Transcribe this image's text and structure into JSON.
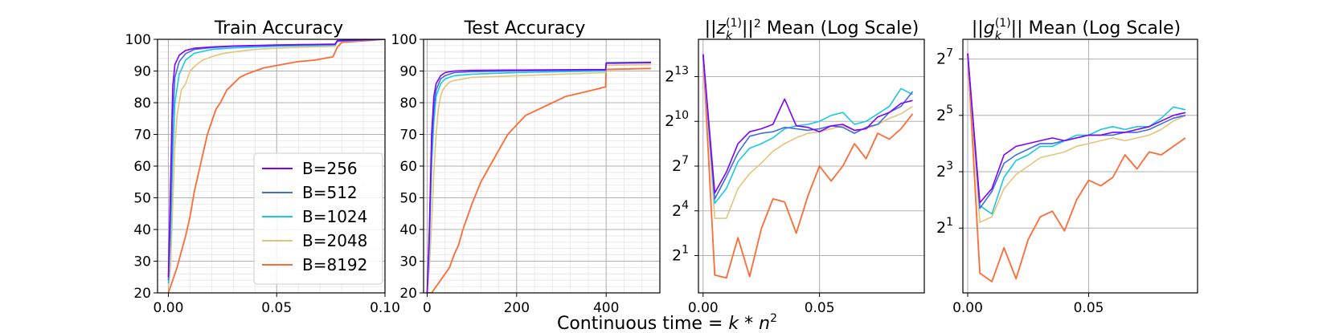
{
  "xlabel_parts": {
    "main": "Continuous time ",
    "eq": "= ",
    "k": "k",
    "star": " * ",
    "n": "n",
    "exp": "2"
  },
  "legend": {
    "entries": [
      "B=256",
      "B=512",
      "B=1024",
      "B=2048",
      "B=8192"
    ],
    "placement": "lower-right"
  },
  "colors": {
    "B=256": "#7f00ff",
    "B=512": "#3b6fe0",
    "B=1024": "#19c8e3",
    "B=2048": "#e5c37a",
    "B=8192": "#ff6a35"
  },
  "chart_data": [
    {
      "type": "line",
      "title": "Train Accuracy",
      "xlim": [
        -0.005,
        0.1
      ],
      "ylim": [
        20,
        100
      ],
      "xticks": [
        0.0,
        0.05,
        0.1
      ],
      "xtick_labels": [
        "0.00",
        "0.05",
        "0.10"
      ],
      "yticks": [
        20,
        30,
        40,
        50,
        60,
        70,
        80,
        90,
        100
      ],
      "ytick_labels": [
        "20",
        "30",
        "40",
        "50",
        "60",
        "70",
        "80",
        "90",
        "100"
      ],
      "grid": true,
      "minor_grid": true,
      "series": [
        {
          "name": "B=256",
          "x": [
            0,
            0.001,
            0.002,
            0.003,
            0.005,
            0.008,
            0.012,
            0.02,
            0.03,
            0.05,
            0.077,
            0.078,
            0.1
          ],
          "y": [
            25,
            55,
            85,
            92,
            95,
            96.5,
            97.2,
            97.6,
            97.9,
            98.2,
            98.5,
            99.6,
            100
          ]
        },
        {
          "name": "B=512",
          "x": [
            0,
            0.001,
            0.002,
            0.003,
            0.005,
            0.008,
            0.012,
            0.02,
            0.03,
            0.05,
            0.077,
            0.078,
            0.1
          ],
          "y": [
            24,
            45,
            75,
            88,
            93,
            95.5,
            96.8,
            97.4,
            97.8,
            98.1,
            98.4,
            99.5,
            100
          ]
        },
        {
          "name": "B=1024",
          "x": [
            0,
            0.001,
            0.002,
            0.003,
            0.005,
            0.008,
            0.012,
            0.02,
            0.03,
            0.05,
            0.077,
            0.078,
            0.1
          ],
          "y": [
            23,
            38,
            62,
            80,
            89,
            93.5,
            95.6,
            96.8,
            97.3,
            97.8,
            98.2,
            99.4,
            100
          ]
        },
        {
          "name": "B=2048",
          "x": [
            0,
            0.001,
            0.002,
            0.003,
            0.004,
            0.006,
            0.008,
            0.01,
            0.013,
            0.016,
            0.02,
            0.025,
            0.03,
            0.04,
            0.05,
            0.06,
            0.077,
            0.078,
            0.1
          ],
          "y": [
            22,
            28,
            48,
            66,
            76,
            84,
            86,
            90,
            92,
            93.5,
            94.5,
            95.5,
            96,
            96.8,
            97.2,
            97.5,
            97.8,
            99.3,
            100
          ]
        },
        {
          "name": "B=8192",
          "x": [
            0,
            0.002,
            0.004,
            0.006,
            0.008,
            0.01,
            0.012,
            0.014,
            0.016,
            0.018,
            0.02,
            0.022,
            0.024,
            0.027,
            0.03,
            0.033,
            0.036,
            0.04,
            0.044,
            0.048,
            0.052,
            0.056,
            0.06,
            0.064,
            0.068,
            0.072,
            0.076,
            0.078,
            0.08,
            0.09,
            0.1
          ],
          "y": [
            20,
            24,
            28,
            33,
            38,
            44,
            52,
            58,
            64,
            70,
            74,
            78,
            80,
            84,
            86,
            88,
            89,
            90,
            91,
            91.5,
            92,
            92.5,
            93,
            93.2,
            93.5,
            94,
            94.5,
            97.5,
            99,
            99.5,
            100
          ]
        }
      ]
    },
    {
      "type": "line",
      "title": "Test Accuracy",
      "xlim": [
        -8,
        520
      ],
      "ylim": [
        20,
        100
      ],
      "xticks": [
        0,
        200,
        400
      ],
      "xtick_labels": [
        "0",
        "200",
        "400"
      ],
      "yticks": [
        20,
        30,
        40,
        50,
        60,
        70,
        80,
        90,
        100
      ],
      "ytick_labels": [
        "20",
        "30",
        "40",
        "50",
        "60",
        "70",
        "80",
        "90",
        "100"
      ],
      "grid": true,
      "minor_grid": true,
      "series": [
        {
          "name": "B=256",
          "x": [
            0,
            5,
            10,
            15,
            20,
            30,
            40,
            60,
            100,
            200,
            300,
            399,
            400,
            500
          ],
          "y": [
            20,
            40,
            70,
            82,
            86,
            88.5,
            89.5,
            90,
            90.2,
            90.3,
            90.4,
            90.5,
            92.5,
            92.7
          ]
        },
        {
          "name": "B=512",
          "x": [
            0,
            5,
            10,
            15,
            20,
            30,
            40,
            60,
            100,
            200,
            300,
            399,
            400,
            500
          ],
          "y": [
            20,
            38,
            65,
            78,
            84,
            87.5,
            88.5,
            89.5,
            89.8,
            90,
            90.2,
            90.3,
            92.4,
            92.6
          ]
        },
        {
          "name": "B=1024",
          "x": [
            0,
            5,
            10,
            15,
            20,
            30,
            40,
            60,
            100,
            200,
            300,
            399,
            400,
            500
          ],
          "y": [
            20,
            35,
            60,
            74,
            82,
            86,
            87.5,
            88.5,
            89,
            89.5,
            89.8,
            90,
            92.6,
            92.8
          ]
        },
        {
          "name": "B=2048",
          "x": [
            0,
            5,
            10,
            15,
            20,
            25,
            30,
            35,
            40,
            50,
            60,
            80,
            100,
            200,
            300,
            399,
            400,
            500
          ],
          "y": [
            20,
            28,
            42,
            58,
            70,
            78,
            82,
            84,
            85,
            86.5,
            87,
            87.5,
            88,
            88.5,
            89,
            89.5,
            91.8,
            92
          ]
        },
        {
          "name": "B=8192",
          "x": [
            0,
            10,
            20,
            30,
            40,
            50,
            60,
            70,
            80,
            90,
            100,
            120,
            140,
            160,
            180,
            200,
            220,
            250,
            280,
            310,
            340,
            370,
            399,
            400,
            500
          ],
          "y": [
            20,
            20,
            22,
            24,
            26,
            28,
            32,
            35,
            40,
            44,
            48,
            55,
            60,
            65,
            70,
            73,
            76,
            78,
            80,
            82,
            83,
            84,
            85,
            90.5,
            90.8
          ]
        }
      ]
    },
    {
      "type": "line",
      "title_parts": {
        "pre": "||",
        "var": "z",
        "sub": "k",
        "sup": "(1)",
        "post": "||",
        "pow": "2",
        "rest": " Mean (Log Scale)"
      },
      "xscale": "linear",
      "yscale": "log2",
      "xlim": [
        -0.002,
        0.095
      ],
      "ylim_log2": [
        -1.5,
        15.5
      ],
      "xticks": [
        0.0,
        0.05
      ],
      "xtick_labels": [
        "0.00",
        "0.05"
      ],
      "yticks_log2": [
        1,
        4,
        7,
        10,
        13
      ],
      "ytick_labels": [
        {
          "b": "2",
          "e": "1"
        },
        {
          "b": "2",
          "e": "4"
        },
        {
          "b": "2",
          "e": "7"
        },
        {
          "b": "2",
          "e": "10"
        },
        {
          "b": "2",
          "e": "13"
        }
      ],
      "grid": true,
      "series": [
        {
          "name": "B=256",
          "x": [
            0,
            0.005,
            0.01,
            0.015,
            0.02,
            0.025,
            0.03,
            0.035,
            0.04,
            0.045,
            0.05,
            0.055,
            0.06,
            0.065,
            0.07,
            0.075,
            0.08,
            0.085,
            0.09
          ],
          "y_log2": [
            14.5,
            5.2,
            6.6,
            8.5,
            9.3,
            9.5,
            9.8,
            11.5,
            9.7,
            9.6,
            9.3,
            9.7,
            9.8,
            9.4,
            9.5,
            10.3,
            10.6,
            11.2,
            11.4
          ]
        },
        {
          "name": "B=512",
          "x": [
            0,
            0.005,
            0.01,
            0.015,
            0.02,
            0.025,
            0.03,
            0.035,
            0.04,
            0.045,
            0.05,
            0.055,
            0.06,
            0.065,
            0.07,
            0.075,
            0.08,
            0.085,
            0.09
          ],
          "y_log2": [
            14.5,
            4.8,
            6.3,
            7.9,
            9.0,
            9.2,
            9.3,
            9.6,
            9.5,
            9.4,
            9.5,
            9.7,
            9.6,
            9.2,
            9.6,
            9.8,
            10.6,
            11.0,
            12.0
          ]
        },
        {
          "name": "B=1024",
          "x": [
            0,
            0.005,
            0.01,
            0.015,
            0.02,
            0.025,
            0.03,
            0.035,
            0.04,
            0.045,
            0.05,
            0.055,
            0.06,
            0.065,
            0.07,
            0.075,
            0.08,
            0.085,
            0.09
          ],
          "y_log2": [
            14.5,
            4.5,
            5.5,
            7.3,
            8.2,
            8.5,
            8.9,
            9.5,
            9.7,
            9.8,
            10.0,
            10.4,
            10.6,
            9.8,
            10.0,
            10.5,
            11.0,
            12.2,
            11.8
          ]
        },
        {
          "name": "B=2048",
          "x": [
            0,
            0.005,
            0.01,
            0.015,
            0.02,
            0.025,
            0.03,
            0.035,
            0.04,
            0.045,
            0.05,
            0.055,
            0.06,
            0.065,
            0.07,
            0.075,
            0.08,
            0.085,
            0.09
          ],
          "y_log2": [
            14.5,
            3.5,
            3.5,
            5.5,
            6.5,
            7.2,
            8.0,
            8.5,
            8.9,
            9.2,
            9.3,
            9.5,
            9.7,
            9.4,
            9.5,
            9.8,
            10.2,
            10.5,
            11.0
          ]
        },
        {
          "name": "B=8192",
          "x": [
            0,
            0.005,
            0.01,
            0.015,
            0.02,
            0.025,
            0.03,
            0.035,
            0.04,
            0.045,
            0.05,
            0.055,
            0.06,
            0.065,
            0.07,
            0.075,
            0.08,
            0.085,
            0.09
          ],
          "y_log2": [
            14.5,
            -0.3,
            -0.5,
            2.2,
            -0.4,
            2.8,
            4.8,
            4.6,
            2.5,
            5.0,
            7.0,
            6.0,
            7.0,
            8.5,
            7.5,
            9.2,
            8.8,
            9.5,
            10.5
          ]
        }
      ]
    },
    {
      "type": "line",
      "title_parts": {
        "pre": "||",
        "var": "g",
        "sub": "k",
        "sup": "(1)",
        "post": "||",
        "pow": "",
        "rest": " Mean (Log Scale)"
      },
      "xscale": "linear",
      "yscale": "log2",
      "xlim": [
        -0.002,
        0.095
      ],
      "ylim_log2": [
        -1.3,
        7.7
      ],
      "xticks": [
        0.0,
        0.05
      ],
      "xtick_labels": [
        "0.00",
        "0.05"
      ],
      "yticks_log2": [
        1,
        3,
        5,
        7
      ],
      "ytick_labels": [
        {
          "b": "2",
          "e": "1"
        },
        {
          "b": "2",
          "e": "3"
        },
        {
          "b": "2",
          "e": "5"
        },
        {
          "b": "2",
          "e": "7"
        }
      ],
      "grid": true,
      "series": [
        {
          "name": "B=256",
          "x": [
            0,
            0.005,
            0.01,
            0.015,
            0.02,
            0.025,
            0.03,
            0.035,
            0.04,
            0.045,
            0.05,
            0.055,
            0.06,
            0.065,
            0.07,
            0.075,
            0.08,
            0.085,
            0.09
          ],
          "y_log2": [
            7.2,
            1.9,
            2.4,
            3.6,
            3.9,
            4.0,
            4.1,
            4.2,
            4.1,
            4.2,
            4.3,
            4.3,
            4.4,
            4.4,
            4.5,
            4.6,
            4.8,
            5.0,
            5.1
          ]
        },
        {
          "name": "B=512",
          "x": [
            0,
            0.005,
            0.01,
            0.015,
            0.02,
            0.025,
            0.03,
            0.035,
            0.04,
            0.045,
            0.05,
            0.055,
            0.06,
            0.065,
            0.07,
            0.075,
            0.08,
            0.085,
            0.09
          ],
          "y_log2": [
            7.2,
            1.7,
            2.3,
            3.3,
            3.6,
            3.8,
            4.0,
            4.0,
            4.1,
            4.2,
            4.3,
            4.3,
            4.3,
            4.4,
            4.4,
            4.5,
            4.7,
            4.9,
            5.0
          ]
        },
        {
          "name": "B=1024",
          "x": [
            0,
            0.005,
            0.01,
            0.015,
            0.02,
            0.025,
            0.03,
            0.035,
            0.04,
            0.045,
            0.05,
            0.055,
            0.06,
            0.065,
            0.07,
            0.075,
            0.08,
            0.085,
            0.09
          ],
          "y_log2": [
            7.2,
            1.8,
            1.5,
            2.8,
            3.4,
            3.6,
            3.9,
            3.9,
            4.1,
            4.3,
            4.3,
            4.5,
            4.6,
            4.5,
            4.6,
            4.6,
            4.9,
            5.3,
            5.2
          ]
        },
        {
          "name": "B=2048",
          "x": [
            0,
            0.005,
            0.01,
            0.015,
            0.02,
            0.025,
            0.03,
            0.035,
            0.04,
            0.045,
            0.05,
            0.055,
            0.06,
            0.065,
            0.07,
            0.075,
            0.08,
            0.085,
            0.09
          ],
          "y_log2": [
            7.2,
            1.2,
            1.4,
            2.4,
            2.9,
            3.2,
            3.5,
            3.6,
            3.7,
            3.9,
            4.0,
            4.1,
            4.2,
            4.1,
            4.2,
            4.3,
            4.5,
            4.8,
            5.0
          ]
        },
        {
          "name": "B=8192",
          "x": [
            0,
            0.005,
            0.01,
            0.015,
            0.02,
            0.025,
            0.03,
            0.035,
            0.04,
            0.045,
            0.05,
            0.055,
            0.06,
            0.065,
            0.07,
            0.075,
            0.08,
            0.085,
            0.09
          ],
          "y_log2": [
            7.2,
            -0.6,
            -0.9,
            0.3,
            -0.8,
            0.6,
            1.4,
            1.6,
            0.9,
            2.0,
            2.7,
            2.5,
            2.8,
            3.6,
            3.1,
            3.7,
            3.6,
            3.9,
            4.2
          ]
        }
      ]
    }
  ]
}
